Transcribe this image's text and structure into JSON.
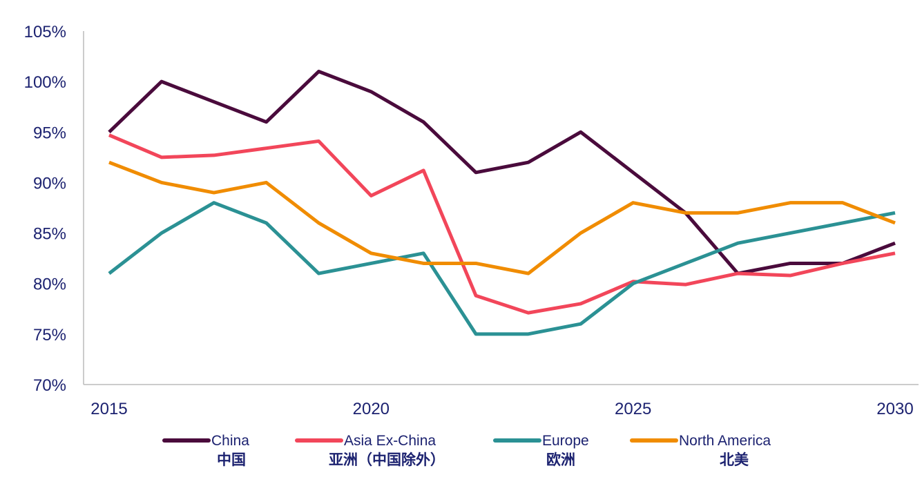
{
  "chart_data": {
    "type": "line",
    "x": [
      2015,
      2016,
      2017,
      2018,
      2019,
      2020,
      2021,
      2022,
      2023,
      2024,
      2025,
      2026,
      2027,
      2028,
      2029,
      2030
    ],
    "x_ticks": [
      "2015",
      "2020",
      "2025",
      "2030"
    ],
    "y_ticks": [
      "70%",
      "75%",
      "80%",
      "85%",
      "90%",
      "95%",
      "100%",
      "105%"
    ],
    "ylim": [
      70,
      105
    ],
    "xlim": [
      2015,
      2030
    ],
    "grid": false,
    "legend_position": "bottom",
    "series": [
      {
        "name": "China",
        "name_cn": "中国",
        "color": "#4a0b3c",
        "values": [
          95,
          100,
          98,
          96,
          101,
          99,
          96,
          91,
          92,
          95,
          91,
          87,
          81,
          82,
          82,
          84
        ]
      },
      {
        "name": "Asia Ex-China",
        "name_cn": "亚洲（中国除外）",
        "color": "#f2465a",
        "values": [
          94.7,
          92.5,
          92.7,
          93.4,
          94.1,
          88.7,
          91.2,
          78.8,
          77.1,
          78,
          80.2,
          79.9,
          81,
          80.8,
          82,
          83
        ]
      },
      {
        "name": "Europe",
        "name_cn": "欧洲",
        "color": "#2b9194",
        "values": [
          81,
          85,
          88,
          86,
          81,
          82,
          83,
          75,
          75,
          76,
          80,
          82,
          84,
          85,
          86,
          87
        ]
      },
      {
        "name": "North America",
        "name_cn": "北美",
        "color": "#f08c00",
        "values": [
          92,
          90,
          89,
          90,
          86,
          83,
          82,
          82,
          81,
          85,
          88,
          87,
          87,
          88,
          88,
          86
        ]
      }
    ]
  }
}
